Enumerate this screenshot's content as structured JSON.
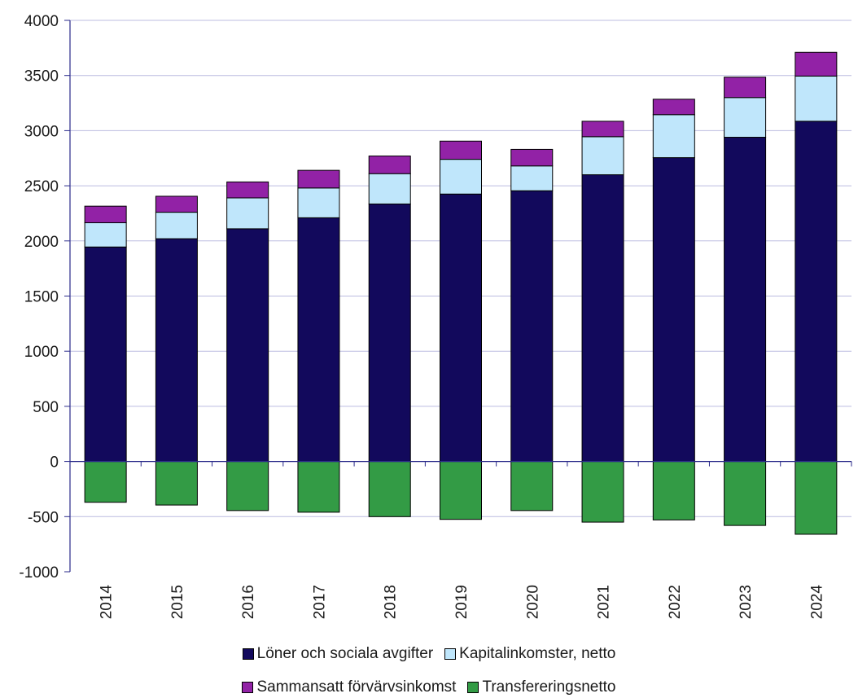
{
  "chart_data": {
    "type": "bar",
    "stacked": true,
    "title": "",
    "xlabel": "",
    "ylabel": "",
    "ylim": [
      -1000,
      4000
    ],
    "yticks": [
      "4000",
      "3500",
      "3000",
      "2500",
      "2000",
      "1500",
      "1000",
      "500",
      "0",
      "-500",
      "-1000"
    ],
    "categories": [
      "2014",
      "2015",
      "2016",
      "2017",
      "2018",
      "2019",
      "2020",
      "2021",
      "2022",
      "2023",
      "2024"
    ],
    "grid": "horizontal",
    "legend_position": "bottom",
    "series": [
      {
        "name": "Löner och sociala avgifter",
        "color": "#12095c",
        "values": [
          1945,
          2020,
          2110,
          2210,
          2335,
          2425,
          2455,
          2600,
          2755,
          2940,
          3085
        ]
      },
      {
        "name": "Kapitalinkomster, netto",
        "color": "#bfe6fb",
        "values": [
          220,
          240,
          280,
          270,
          275,
          315,
          225,
          345,
          390,
          360,
          410
        ]
      },
      {
        "name": "Sammansatt förvärvsinkomst",
        "color": "#9222a6",
        "values": [
          150,
          145,
          145,
          160,
          160,
          165,
          150,
          140,
          140,
          185,
          215
        ]
      },
      {
        "name": "Transfereringsnetto",
        "color": "#339b45",
        "values": [
          -370,
          -395,
          -445,
          -460,
          -500,
          -525,
          -445,
          -550,
          -530,
          -580,
          -660
        ]
      }
    ]
  }
}
